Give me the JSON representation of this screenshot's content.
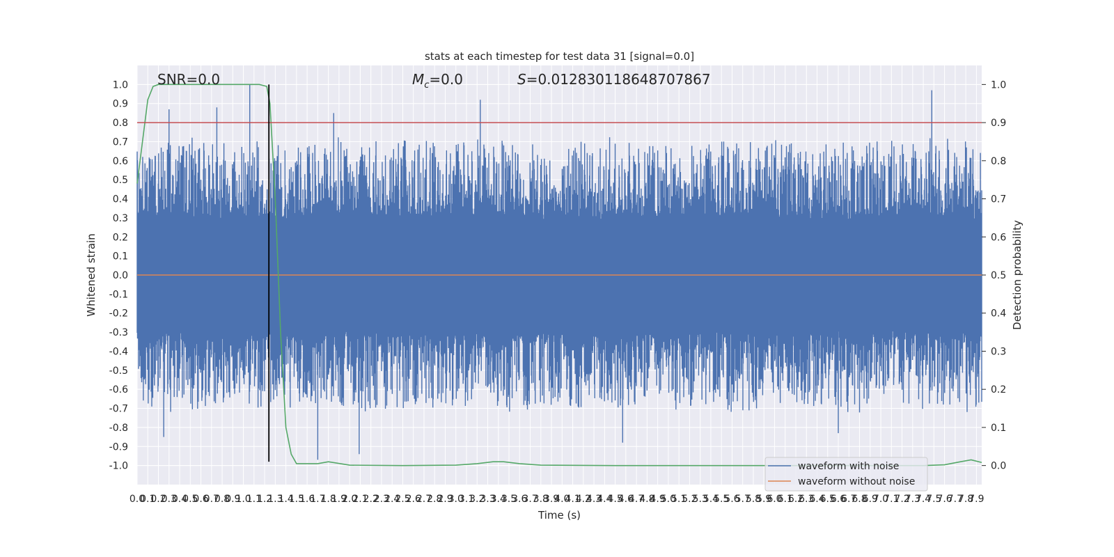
{
  "chart_data": {
    "type": "line",
    "title": "stats at each timestep for test data 31 [signal=0.0]",
    "xlabel": "Time (s)",
    "ylabel": "Whitened strain",
    "y2label": "Detection probability",
    "xlim": [
      0.0,
      7.95
    ],
    "ylim": [
      -1.1,
      1.1
    ],
    "y2lim": [
      -0.05,
      1.05
    ],
    "x_ticks": [
      "0.0",
      "0.1",
      "0.2",
      "0.3",
      "0.4",
      "0.5",
      "0.6",
      "0.7",
      "0.8",
      "0.9",
      "1.0",
      "1.1",
      "1.2",
      "1.3",
      "1.4",
      "1.5",
      "1.6",
      "1.7",
      "1.8",
      "1.9",
      "2.0",
      "2.1",
      "2.2",
      "2.3",
      "2.4",
      "2.5",
      "2.6",
      "2.7",
      "2.8",
      "2.9",
      "3.0",
      "3.1",
      "3.2",
      "3.3",
      "3.4",
      "3.5",
      "3.6",
      "3.7",
      "3.8",
      "3.9",
      "4.0",
      "4.1",
      "4.2",
      "4.3",
      "4.4",
      "4.5",
      "4.6",
      "4.7",
      "4.8",
      "4.9",
      "5.0",
      "5.1",
      "5.2",
      "5.3",
      "5.4",
      "5.5",
      "5.6",
      "5.7",
      "5.8",
      "5.9",
      "6.0",
      "6.1",
      "6.2",
      "6.3",
      "6.4",
      "6.5",
      "6.6",
      "6.7",
      "6.8",
      "6.9",
      "7.0",
      "7.1",
      "7.2",
      "7.3",
      "7.4",
      "7.5",
      "7.6",
      "7.7",
      "7.8",
      "7.9"
    ],
    "y_ticks": [
      "-1.0",
      "-0.9",
      "-0.8",
      "-0.7",
      "-0.6",
      "-0.5",
      "-0.4",
      "-0.3",
      "-0.2",
      "-0.1",
      "0.0",
      "0.1",
      "0.2",
      "0.3",
      "0.4",
      "0.5",
      "0.6",
      "0.7",
      "0.8",
      "0.9",
      "1.0"
    ],
    "y2_ticks": [
      "0.0",
      "0.1",
      "0.2",
      "0.3",
      "0.4",
      "0.5",
      "0.6",
      "0.7",
      "0.8",
      "0.9",
      "1.0"
    ],
    "grid": true,
    "legend_position": "bottom-right",
    "annotations": {
      "snr": "SNR=0.0",
      "mc_symbol": "M",
      "mc_sub": "c",
      "mc_value": "=0.0",
      "s_symbol": "S",
      "s_value": "=0.012830118648707867"
    },
    "series": [
      {
        "name": "waveform with noise",
        "axis": "left",
        "color": "#4c72b0",
        "description_values": "dense noise envelope",
        "envelope_peaks": [
          {
            "x": 0.3,
            "y": 0.87
          },
          {
            "x": 0.75,
            "y": 0.88
          },
          {
            "x": 1.06,
            "y": 1.0
          },
          {
            "x": 1.85,
            "y": 0.85
          },
          {
            "x": 3.23,
            "y": 0.92
          },
          {
            "x": 7.48,
            "y": 0.97
          },
          {
            "x": 0.25,
            "y": -0.85
          },
          {
            "x": 1.7,
            "y": -0.97
          },
          {
            "x": 2.09,
            "y": -0.94
          },
          {
            "x": 4.57,
            "y": -0.88
          },
          {
            "x": 6.6,
            "y": -0.83
          }
        ]
      },
      {
        "name": "waveform without noise",
        "axis": "left",
        "color": "#dd8452",
        "x": [
          0.0,
          7.95
        ],
        "y": [
          0.0,
          0.0
        ]
      },
      {
        "axis": "right",
        "color": "#55a868",
        "x": [
          0.0,
          0.05,
          0.1,
          0.15,
          0.2,
          0.3,
          0.5,
          1.0,
          1.15,
          1.22,
          1.25,
          1.3,
          1.35,
          1.4,
          1.45,
          1.5,
          1.7,
          1.8,
          2.0,
          2.5,
          3.0,
          3.2,
          3.35,
          3.45,
          3.6,
          3.8,
          4.5,
          6.0,
          7.4,
          7.6,
          7.75,
          7.85,
          7.95
        ],
        "y": [
          0.74,
          0.85,
          0.96,
          0.995,
          1.0,
          1.0,
          1.0,
          1.0,
          1.0,
          0.995,
          0.95,
          0.7,
          0.35,
          0.1,
          0.03,
          0.005,
          0.005,
          0.01,
          0.001,
          0.0,
          0.001,
          0.005,
          0.01,
          0.01,
          0.005,
          0.001,
          0.0,
          0.0,
          0.0,
          0.002,
          0.01,
          0.015,
          0.008
        ]
      },
      {
        "axis": "right",
        "color": "#c44e52",
        "type": "hline",
        "y": 0.9
      },
      {
        "axis": "left",
        "color": "#000000",
        "type": "vline",
        "x": 1.24,
        "y": [
          -0.98,
          1.0
        ]
      }
    ]
  }
}
